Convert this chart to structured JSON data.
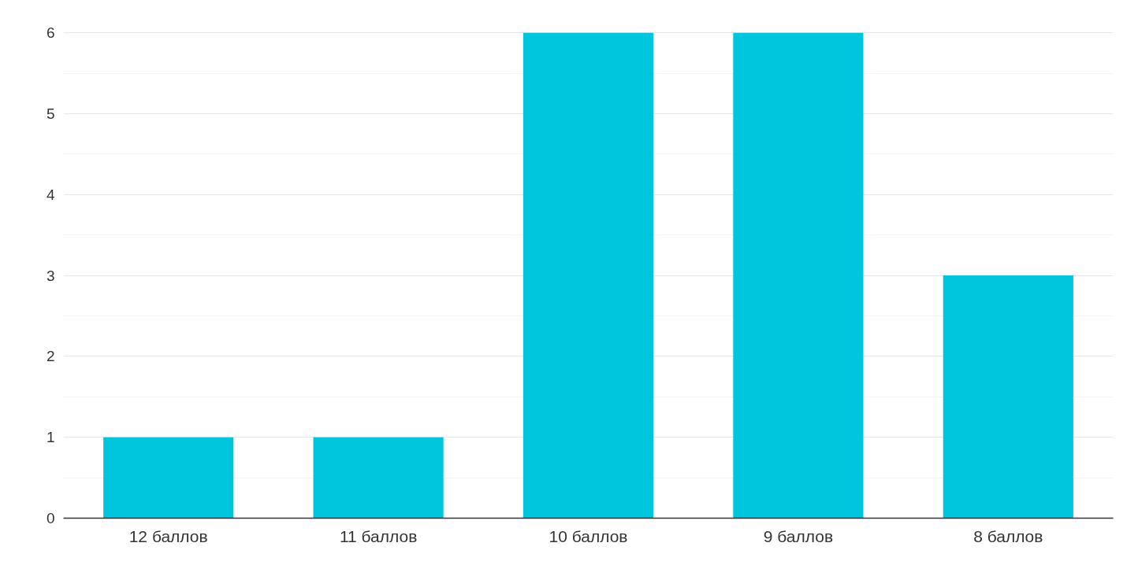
{
  "chart_data": {
    "type": "bar",
    "categories": [
      "12 баллов",
      "11 баллов",
      "10 баллов",
      "9 баллов",
      "8 баллов"
    ],
    "values": [
      1,
      1,
      6,
      6,
      3
    ],
    "color": "#00c6dd",
    "ylim": [
      0,
      6
    ],
    "yticks": [
      0,
      1,
      2,
      3,
      4,
      5,
      6
    ],
    "grid": "y"
  }
}
